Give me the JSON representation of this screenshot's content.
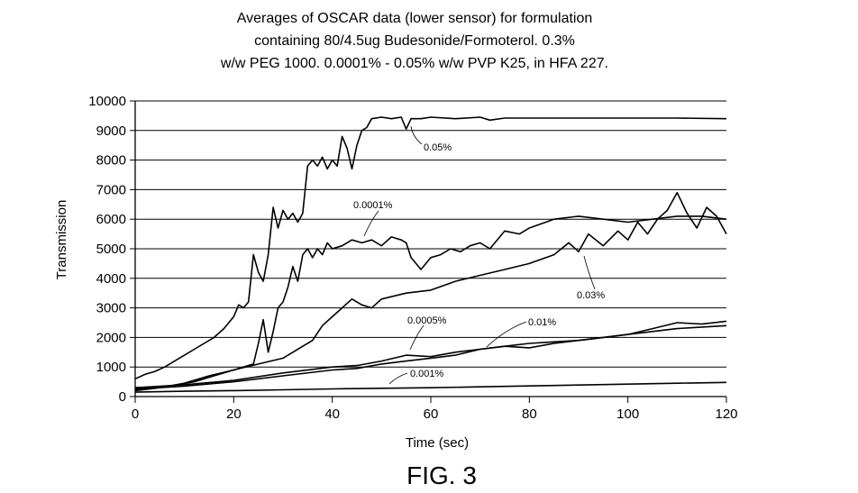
{
  "chart_data": {
    "type": "line",
    "title_lines": [
      "Averages of OSCAR data (lower sensor) for  formulation",
      "containing 80/4.5ug Budesonide/Formoterol.  0.3%",
      "w/w PEG 1000.  0.0001% - 0.05% w/w PVP K25, in HFA 227."
    ],
    "xlabel": "Time (sec)",
    "ylabel": "Transmission",
    "xlim": [
      0,
      120
    ],
    "ylim": [
      0,
      10000
    ],
    "x_ticks": [
      0,
      20,
      40,
      60,
      80,
      100,
      120
    ],
    "y_ticks": [
      0,
      1000,
      2000,
      3000,
      4000,
      5000,
      6000,
      7000,
      8000,
      9000,
      10000
    ],
    "grid": true,
    "figure_label": "FIG. 3",
    "series": [
      {
        "name": "0.05%",
        "x": [
          0,
          2,
          4,
          6,
          8,
          10,
          12,
          14,
          16,
          18,
          20,
          21,
          22,
          23,
          24,
          25,
          26,
          27,
          28,
          29,
          30,
          31,
          32,
          33,
          34,
          35,
          36,
          37,
          38,
          39,
          40,
          41,
          42,
          43,
          44,
          45,
          46,
          47,
          48,
          50,
          52,
          54,
          55,
          56,
          58,
          60,
          65,
          70,
          72,
          75,
          80,
          90,
          100,
          110,
          120
        ],
        "values": [
          600,
          750,
          850,
          1000,
          1200,
          1400,
          1600,
          1800,
          2000,
          2300,
          2700,
          3100,
          3000,
          3200,
          4800,
          4200,
          3900,
          4800,
          6400,
          5700,
          6300,
          6000,
          6200,
          5900,
          6200,
          7800,
          8000,
          7800,
          8100,
          7700,
          8000,
          7800,
          8800,
          8400,
          7700,
          8500,
          9000,
          9100,
          9400,
          9450,
          9400,
          9450,
          9050,
          9400,
          9400,
          9450,
          9400,
          9450,
          9350,
          9420,
          9420,
          9420,
          9420,
          9420,
          9400
        ]
      },
      {
        "name": "0.0001%",
        "x": [
          0,
          4,
          8,
          12,
          16,
          20,
          22,
          24,
          25,
          26,
          27,
          28,
          29,
          30,
          31,
          32,
          33,
          34,
          35,
          36,
          37,
          38,
          39,
          40,
          42,
          44,
          46,
          48,
          50,
          52,
          54,
          55,
          56,
          58,
          60,
          62,
          64,
          66,
          68,
          70,
          72,
          75,
          78,
          80,
          85,
          90,
          95,
          100,
          105,
          110,
          115,
          120
        ],
        "values": [
          300,
          320,
          380,
          500,
          700,
          900,
          1000,
          1100,
          1800,
          2600,
          1500,
          2200,
          3000,
          3200,
          3700,
          4400,
          3900,
          4800,
          5000,
          4700,
          5000,
          4800,
          5200,
          5000,
          5100,
          5300,
          5200,
          5300,
          5100,
          5400,
          5300,
          5200,
          4700,
          4300,
          4700,
          4800,
          5000,
          4900,
          5100,
          5200,
          5000,
          5600,
          5500,
          5700,
          6000,
          6100,
          6000,
          5900,
          6000,
          6100,
          6100,
          6000
        ]
      },
      {
        "name": "0.03%",
        "x": [
          0,
          5,
          10,
          15,
          20,
          25,
          30,
          34,
          36,
          38,
          40,
          42,
          44,
          46,
          48,
          50,
          55,
          60,
          65,
          70,
          75,
          80,
          85,
          88,
          90,
          92,
          95,
          98,
          100,
          102,
          104,
          106,
          108,
          110,
          112,
          114,
          116,
          118,
          120
        ],
        "values": [
          200,
          300,
          450,
          700,
          900,
          1100,
          1300,
          1700,
          1900,
          2400,
          2700,
          3000,
          3300,
          3100,
          3000,
          3300,
          3500,
          3600,
          3900,
          4100,
          4300,
          4500,
          4800,
          5200,
          4900,
          5500,
          5100,
          5600,
          5300,
          5900,
          5500,
          6000,
          6300,
          6900,
          6200,
          5700,
          6400,
          6100,
          5500
        ]
      },
      {
        "name": "0.0005%",
        "x": [
          0,
          10,
          20,
          30,
          40,
          45,
          50,
          55,
          60,
          65,
          70,
          75,
          80,
          85,
          90,
          95,
          100,
          105,
          110,
          115,
          120
        ],
        "values": [
          300,
          400,
          550,
          800,
          1000,
          1050,
          1200,
          1400,
          1350,
          1500,
          1600,
          1700,
          1650,
          1800,
          1900,
          2000,
          2100,
          2200,
          2300,
          2350,
          2400
        ]
      },
      {
        "name": "0.01%",
        "x": [
          0,
          10,
          20,
          30,
          40,
          45,
          50,
          55,
          60,
          65,
          70,
          75,
          80,
          85,
          90,
          95,
          100,
          105,
          110,
          115,
          120
        ],
        "values": [
          250,
          350,
          500,
          700,
          900,
          950,
          1100,
          1200,
          1300,
          1400,
          1600,
          1700,
          1800,
          1850,
          1900,
          2000,
          2100,
          2300,
          2500,
          2450,
          2550
        ]
      },
      {
        "name": "0.001%",
        "x": [
          0,
          10,
          20,
          30,
          40,
          50,
          60,
          70,
          80,
          90,
          100,
          110,
          120
        ],
        "values": [
          150,
          180,
          200,
          230,
          260,
          280,
          300,
          330,
          360,
          390,
          420,
          450,
          480
        ]
      }
    ],
    "annotations": [
      {
        "label": "0.05%",
        "series": "0.05%"
      },
      {
        "label": "0.0001%",
        "series": "0.0001%"
      },
      {
        "label": "0.03%",
        "series": "0.03%"
      },
      {
        "label": "0.0005%",
        "series": "0.0005%"
      },
      {
        "label": "0.01%",
        "series": "0.01%"
      },
      {
        "label": "0.001%",
        "series": "0.001%"
      }
    ]
  }
}
